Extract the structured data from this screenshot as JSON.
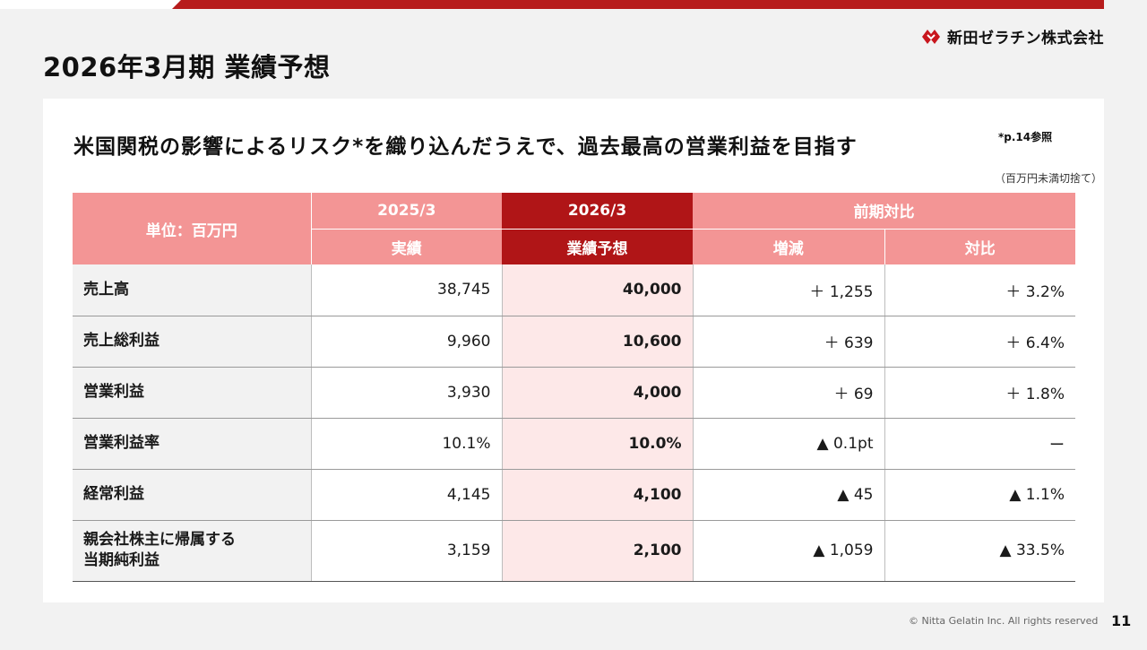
{
  "page": {
    "title": "2026年3月期 業績予想",
    "logo_text": "新田ゼラチン株式会社",
    "page_number": "11",
    "copyright": "© Nitta Gelatin Inc. All rights reserved"
  },
  "card": {
    "headline": "米国関税の影響によるリスク*を織り込んだうえで、過去最高の営業利益を目指す",
    "footnote_ref": "*p.14参照",
    "unit_note": "（百万円未満切捨て）"
  },
  "table": {
    "unit_header": "単位：百万円",
    "col_2025": "2025/3",
    "col_2026": "2026/3",
    "col_yoy": "前期対比",
    "sub_actual": "実績",
    "sub_forecast": "業績予想",
    "sub_change": "増減",
    "sub_ratio": "対比",
    "rows": [
      {
        "label": "売上高",
        "actual": "38,745",
        "forecast": "40,000",
        "change": "＋ 1,255",
        "ratio": "＋ 3.2%"
      },
      {
        "label": "売上総利益",
        "actual": "9,960",
        "forecast": "10,600",
        "change": "＋ 639",
        "ratio": "＋ 6.4%"
      },
      {
        "label": "営業利益",
        "actual": "3,930",
        "forecast": "4,000",
        "change": "＋ 69",
        "ratio": "＋ 1.8%"
      },
      {
        "label": "営業利益率",
        "actual": "10.1%",
        "forecast": "10.0%",
        "change": "▲ 0.1pt",
        "ratio": "ー"
      },
      {
        "label": "経常利益",
        "actual": "4,145",
        "forecast": "4,100",
        "change": "▲ 45",
        "ratio": "▲ 1.1%"
      },
      {
        "label_line1": "親会社株主に帰属する",
        "label_line2": "当期純利益",
        "actual": "3,159",
        "forecast": "2,100",
        "change": "▲ 1,059",
        "ratio": "▲ 33.5%"
      }
    ]
  },
  "colors": {
    "brand_red": "#b01517",
    "header_pink": "#f39595",
    "forecast_cell": "#fde8e8"
  }
}
